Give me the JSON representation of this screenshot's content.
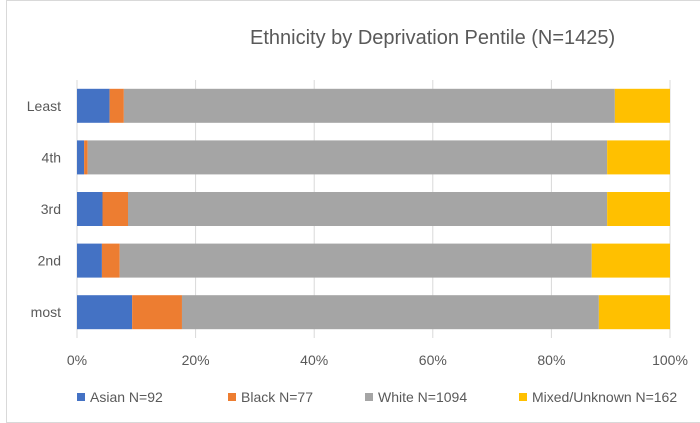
{
  "chart_data": {
    "type": "bar",
    "orientation": "horizontal",
    "stacked": "percent",
    "title": "Ethnicity by Deprivation Pentile (N=1425)",
    "categories": [
      "Least",
      "4th",
      "3rd",
      "2nd",
      "most"
    ],
    "series": [
      {
        "name": "Asian N=92",
        "color": "#4472c4",
        "values": [
          5.5,
          1.2,
          4.3,
          4.2,
          9.3
        ]
      },
      {
        "name": "Black N=77",
        "color": "#ed7d31",
        "values": [
          2.4,
          0.6,
          4.3,
          3.0,
          8.4
        ]
      },
      {
        "name": "White N=1094",
        "color": "#a5a5a5",
        "values": [
          82.8,
          87.6,
          80.8,
          79.6,
          70.3
        ]
      },
      {
        "name": "Mixed/Unknown N=162",
        "color": "#ffc000",
        "values": [
          9.3,
          10.6,
          10.6,
          13.2,
          12.0
        ]
      }
    ],
    "xlim": [
      0,
      100
    ],
    "x_ticks": [
      "0%",
      "20%",
      "40%",
      "60%",
      "80%",
      "100%"
    ],
    "grid": "vertical",
    "legend_position": "bottom"
  }
}
